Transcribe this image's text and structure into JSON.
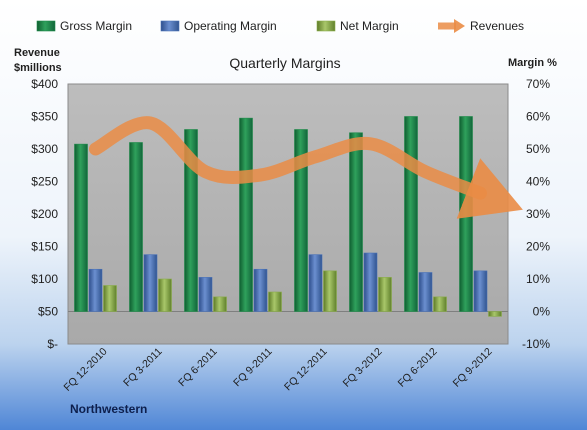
{
  "chart_data": {
    "type": "bar",
    "title": "Quarterly Margins",
    "company": "Northwestern",
    "y_left_label": [
      "Revenue",
      "$millions"
    ],
    "y_right_label": "Margin %",
    "y_left_ticks": [
      "$400",
      "$350",
      "$300",
      "$250",
      "$200",
      "$150",
      "$100",
      "$50",
      "$-"
    ],
    "y_right_ticks": [
      "70%",
      "60%",
      "50%",
      "40%",
      "30%",
      "20%",
      "10%",
      "0%",
      "-10%"
    ],
    "y_left_lim": [
      0,
      400
    ],
    "y_right_lim": [
      -10,
      70
    ],
    "categories": [
      "FQ 12-2010",
      "FQ 3-2011",
      "FQ 6-2011",
      "FQ 9-2011",
      "FQ 12-2011",
      "FQ 3-2012",
      "FQ 6-2012",
      "FQ 9-2012"
    ],
    "series": [
      {
        "name": "Gross Margin",
        "axis": "right",
        "values": [
          51.5,
          52,
          56,
          59.5,
          56,
          55,
          60,
          60
        ],
        "color": "#1e8a4a"
      },
      {
        "name": "Operating Margin",
        "axis": "right",
        "values": [
          13,
          17.5,
          10.5,
          13,
          17.5,
          18,
          12,
          12.5
        ],
        "color": "#4a72b8"
      },
      {
        "name": "Net Margin",
        "axis": "right",
        "values": [
          8,
          10,
          4.5,
          6,
          12.5,
          10.5,
          4.5,
          -1.5
        ],
        "color": "#8aad4a"
      },
      {
        "name": "Revenues",
        "axis": "left",
        "type": "line",
        "values": [
          300,
          340,
          265,
          260,
          288,
          308,
          265,
          232
        ],
        "color": "#ea8c45"
      }
    ],
    "legend_position": "top",
    "grid": false
  }
}
